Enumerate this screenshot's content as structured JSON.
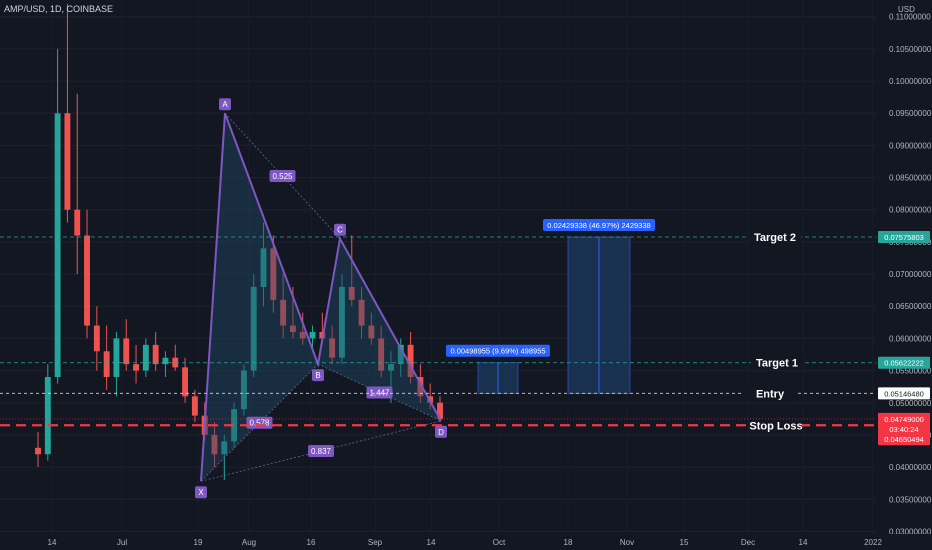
{
  "header": {
    "symbol": "AMP/USD, 1D, COINBASE",
    "currency": "USD"
  },
  "chart_data": {
    "type": "candlestick",
    "y_axis": {
      "range": [
        0.0296,
        0.1126
      ],
      "ticks": [
        "0.11000000",
        "0.10500000",
        "0.10000000",
        "0.09500000",
        "0.09000000",
        "0.08500000",
        "0.08000000",
        "0.07500000",
        "0.07000000",
        "0.06500000",
        "0.06000000",
        "0.05500000",
        "0.05000000",
        "0.04500000",
        "0.04000000",
        "0.03500000",
        "0.03000000"
      ]
    },
    "x_axis": {
      "tick_labels": [
        "14",
        "Jul",
        "19",
        "Aug",
        "16",
        "Sep",
        "14",
        "Oct",
        "18",
        "Nov",
        "15",
        "Dec",
        "14",
        "2022"
      ]
    },
    "candles": [
      [
        0.043,
        0.0455,
        0.04,
        0.042
      ],
      [
        0.042,
        0.056,
        0.041,
        0.054
      ],
      [
        0.054,
        0.105,
        0.053,
        0.095
      ],
      [
        0.095,
        0.112,
        0.078,
        0.08
      ],
      [
        0.08,
        0.098,
        0.07,
        0.076
      ],
      [
        0.076,
        0.08,
        0.06,
        0.062
      ],
      [
        0.062,
        0.065,
        0.055,
        0.058
      ],
      [
        0.058,
        0.062,
        0.052,
        0.054
      ],
      [
        0.054,
        0.061,
        0.051,
        0.06
      ],
      [
        0.06,
        0.063,
        0.055,
        0.056
      ],
      [
        0.056,
        0.059,
        0.053,
        0.055
      ],
      [
        0.055,
        0.06,
        0.054,
        0.059
      ],
      [
        0.059,
        0.061,
        0.055,
        0.056
      ],
      [
        0.056,
        0.058,
        0.054,
        0.057
      ],
      [
        0.057,
        0.059,
        0.055,
        0.0555
      ],
      [
        0.0555,
        0.057,
        0.05,
        0.051
      ],
      [
        0.051,
        0.052,
        0.047,
        0.048
      ],
      [
        0.048,
        0.05,
        0.044,
        0.045
      ],
      [
        0.045,
        0.047,
        0.04,
        0.042
      ],
      [
        0.042,
        0.045,
        0.038,
        0.044
      ],
      [
        0.044,
        0.05,
        0.043,
        0.049
      ],
      [
        0.049,
        0.056,
        0.048,
        0.055
      ],
      [
        0.055,
        0.07,
        0.054,
        0.068
      ],
      [
        0.068,
        0.078,
        0.065,
        0.074
      ],
      [
        0.074,
        0.076,
        0.064,
        0.066
      ],
      [
        0.066,
        0.07,
        0.06,
        0.062
      ],
      [
        0.062,
        0.068,
        0.06,
        0.061
      ],
      [
        0.061,
        0.064,
        0.059,
        0.06
      ],
      [
        0.06,
        0.062,
        0.058,
        0.061
      ],
      [
        0.061,
        0.064,
        0.059,
        0.06
      ],
      [
        0.06,
        0.062,
        0.056,
        0.057
      ],
      [
        0.057,
        0.07,
        0.056,
        0.068
      ],
      [
        0.068,
        0.076,
        0.065,
        0.066
      ],
      [
        0.066,
        0.068,
        0.06,
        0.062
      ],
      [
        0.062,
        0.064,
        0.059,
        0.06
      ],
      [
        0.06,
        0.062,
        0.054,
        0.055
      ],
      [
        0.055,
        0.058,
        0.05,
        0.056
      ],
      [
        0.056,
        0.06,
        0.054,
        0.059
      ],
      [
        0.059,
        0.061,
        0.053,
        0.054
      ],
      [
        0.054,
        0.056,
        0.05,
        0.051
      ],
      [
        0.051,
        0.053,
        0.049,
        0.05
      ],
      [
        0.05,
        0.051,
        0.047,
        0.0475
      ]
    ]
  },
  "pattern": {
    "points": [
      {
        "name": "X",
        "price": 0.0378
      },
      {
        "name": "A",
        "price": 0.095
      },
      {
        "name": "B",
        "price": 0.056
      },
      {
        "name": "C",
        "price": 0.0755
      },
      {
        "name": "D",
        "price": 0.0472
      }
    ],
    "ratios": {
      "xb": "0.578",
      "ac": "0.525",
      "bd": "1.447",
      "xd": "0.837"
    }
  },
  "levels": {
    "target2": {
      "label": "Target 2",
      "price": 0.07575803,
      "price_text": "0.07575803",
      "color": "#26a69a"
    },
    "target1": {
      "label": "Target 1",
      "price": 0.05622222,
      "price_text": "0.05622222",
      "color": "#26a69a"
    },
    "entry": {
      "label": "Entry",
      "price": 0.0514648,
      "price_text": "0.05146480",
      "color": "#d1d4dc"
    },
    "stop": {
      "label": "Stop Loss",
      "price": 0.0465,
      "color": "#f23645"
    }
  },
  "last_price": {
    "price": 0.04749,
    "text": "0.04749000",
    "countdown": "03:40:24",
    "color": "#f23645"
  },
  "stop_price_tag": {
    "text": "0.04650494",
    "color": "#f23645"
  },
  "measures": [
    {
      "text": "0.00498955 (9.69%) 498955",
      "color": "#2962ff"
    },
    {
      "text": "0.02429338 (46.97%) 2429338",
      "color": "#2962ff"
    }
  ],
  "colors": {
    "up": "#26a69a",
    "down": "#ef5350",
    "pattern": "#7e57c2",
    "pattern_fill": "#1f4a66",
    "measure_fill": "#1e3a5f"
  }
}
